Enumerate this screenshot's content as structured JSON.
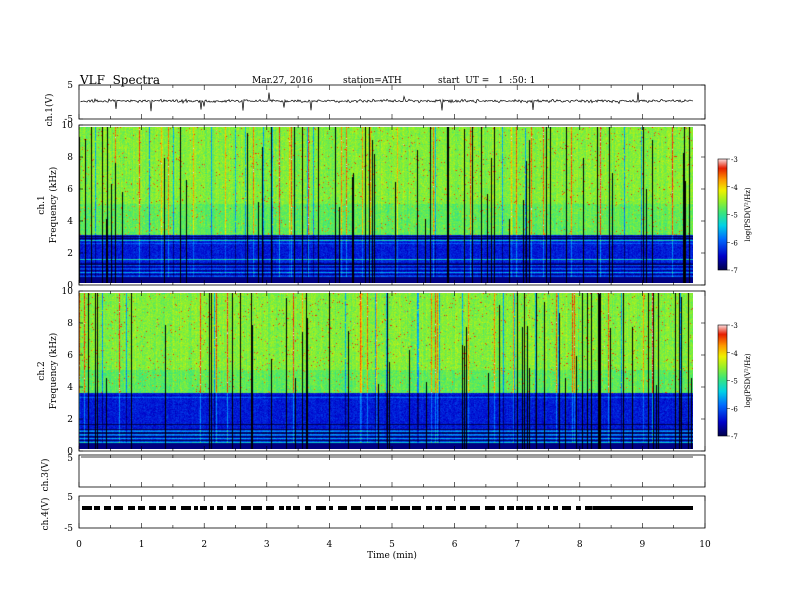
{
  "header": {
    "title": "VLF  Spectra",
    "date": "Mar.27, 2016",
    "station": "station=ATH",
    "start": "start  UT =   1  :50: 1"
  },
  "chart_data": [
    {
      "type": "line",
      "panel": "ch1-waveform",
      "ylabel": "ch.1(V)",
      "ylim": [
        -5,
        5
      ],
      "ytick_labels": [
        "5",
        "-5"
      ],
      "description_values": {
        "baseline_volts": 0,
        "noise_amplitude_volts": 0.6
      }
    },
    {
      "type": "heatmap",
      "panel": "ch1-spectrogram",
      "ylabel": [
        "ch.1",
        "Frequency  (kHz)"
      ],
      "ylim": [
        0,
        10
      ],
      "ytick_labels": [
        "0",
        "2",
        "4",
        "6",
        "8",
        "10"
      ],
      "colorbar": {
        "label": "log(PSD(V²/Hz)",
        "range": [
          -7,
          -3
        ],
        "tick_labels": [
          "-3",
          "-4",
          "-5",
          "-6",
          "-7"
        ]
      },
      "low_band_khz": [
        0,
        3
      ],
      "high_band_khz": [
        3,
        10
      ]
    },
    {
      "type": "heatmap",
      "panel": "ch2-spectrogram",
      "ylabel": [
        "ch.2",
        "Frequency  (kHz)"
      ],
      "ylim": [
        0,
        10
      ],
      "ytick_labels": [
        "0",
        "2",
        "4",
        "6",
        "8",
        "10"
      ],
      "colorbar": {
        "label": "log(PSD(V²/Hz)",
        "range": [
          -7,
          -3
        ],
        "tick_labels": [
          "-3",
          "-4",
          "-5",
          "-6",
          "-7"
        ]
      },
      "low_band_khz": [
        0,
        3.5
      ],
      "high_band_khz": [
        3.5,
        10
      ]
    },
    {
      "type": "line",
      "panel": "ch3-waveform",
      "ylabel": "ch.3(V)",
      "ylim": [
        -5,
        5
      ],
      "ytick_labels": [
        "5"
      ],
      "description_values": {
        "baseline_volts": 5
      }
    },
    {
      "type": "line",
      "panel": "ch4-waveform",
      "ylabel": "ch.4(V)",
      "ylim": [
        -5,
        5
      ],
      "ytick_labels": [
        "5",
        "-5"
      ],
      "description_values": {
        "baseline_volts": 0
      }
    }
  ],
  "xaxis": {
    "label": "Time  (min)",
    "range": [
      0,
      10
    ],
    "tick_labels": [
      "0",
      "1",
      "2",
      "3",
      "4",
      "5",
      "6",
      "7",
      "8",
      "9",
      "10"
    ]
  }
}
